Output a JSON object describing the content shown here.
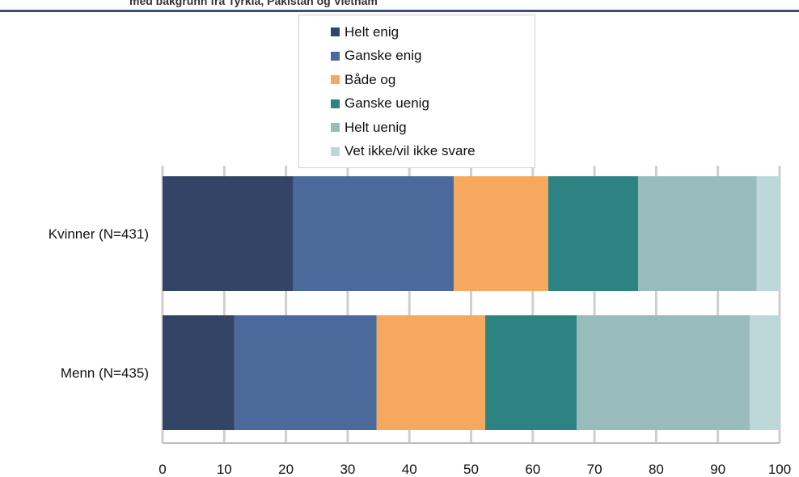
{
  "header": {
    "title": "med bakgrunn fra Tyrkia, Pakistan og Vietnam"
  },
  "chart_data": {
    "type": "bar",
    "orientation": "horizontal",
    "stacked": true,
    "title": "med bakgrunn fra Tyrkia, Pakistan og Vietnam",
    "categories": [
      "Kvinner (N=431)",
      "Menn (N=435)"
    ],
    "series": [
      {
        "name": "Helt enig",
        "color": "#334566",
        "values": [
          21.2,
          11.6
        ]
      },
      {
        "name": "Ganske enig",
        "color": "#4b6a9b",
        "values": [
          26.0,
          23.1
        ]
      },
      {
        "name": "Både og",
        "color": "#f6a95e",
        "values": [
          15.3,
          17.6
        ]
      },
      {
        "name": "Ganske uenig",
        "color": "#2c8381",
        "values": [
          14.6,
          14.8
        ]
      },
      {
        "name": "Helt uenig",
        "color": "#98bcbc",
        "values": [
          19.2,
          28.1
        ]
      },
      {
        "name": "Vet ikke/vil ikke svare",
        "color": "#bdd8d9",
        "values": [
          3.7,
          4.8
        ]
      }
    ],
    "xlim": [
      0,
      100
    ],
    "xticks": [
      "0",
      "10",
      "20",
      "30",
      "40",
      "50",
      "60",
      "70",
      "80",
      "90",
      "100"
    ],
    "grid": true,
    "legend_position": "top-center"
  }
}
